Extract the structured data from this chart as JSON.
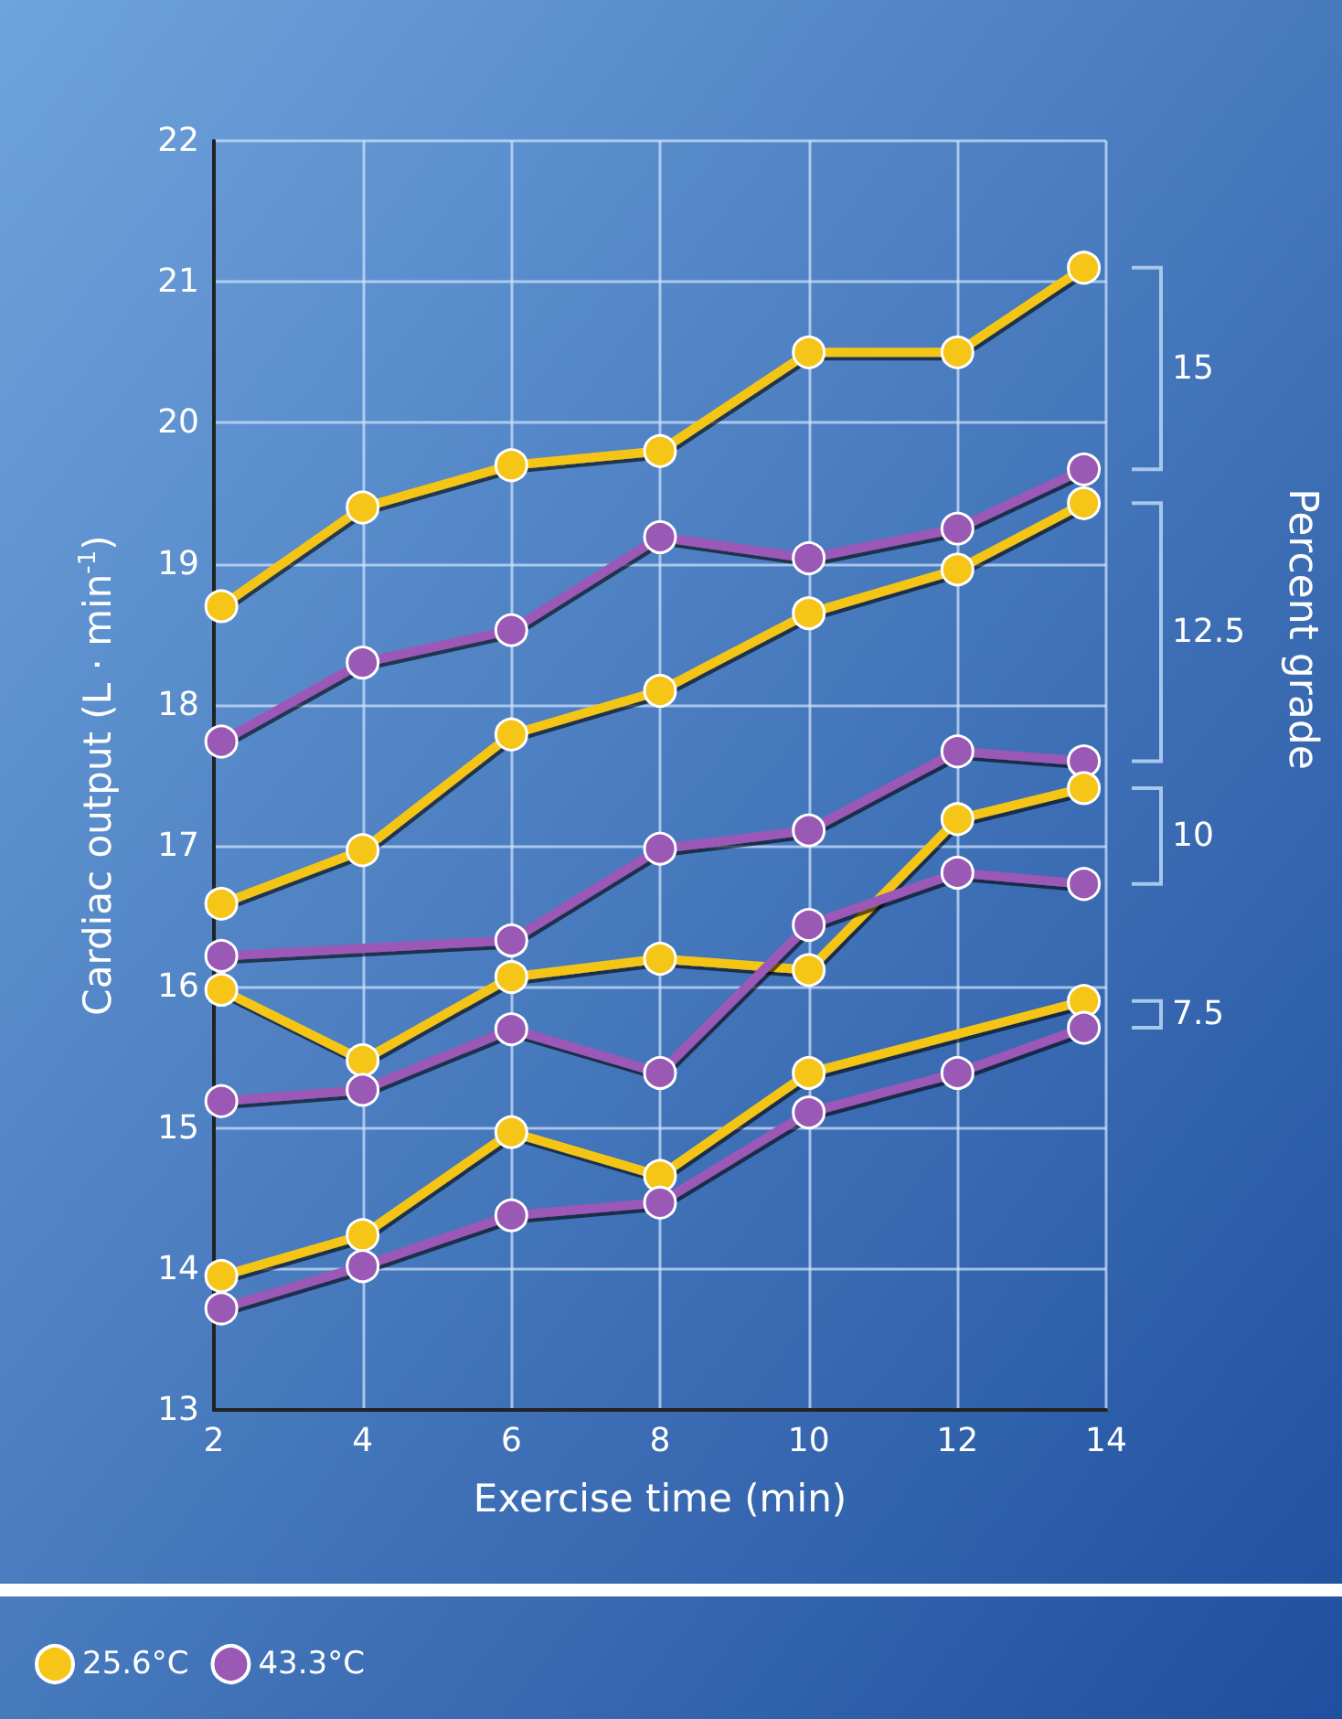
{
  "chart_data": {
    "type": "line",
    "xlabel": "Exercise time (min)",
    "ylabel": "Cardiac output (L · min$^{-1}$)",
    "y2label": "Percent grade",
    "xlim": [
      2,
      14
    ],
    "xticks": [
      2,
      4,
      6,
      8,
      10,
      12,
      14
    ],
    "ylim": [
      13,
      22
    ],
    "yticks": [
      13,
      14,
      15,
      16,
      17,
      18,
      19,
      20,
      21,
      22
    ],
    "grid": true,
    "legend": "bottom left",
    "marker": "circle",
    "line_style": "solid",
    "series": [
      {
        "name": "25.6°C",
        "color": "#f5c518",
        "x": [
          2.1,
          4,
          6,
          8,
          10,
          12,
          13.7
        ],
        "values": [
          18.7,
          19.4,
          19.7,
          19.8,
          20.5,
          20.5,
          21.1
        ]
      },
      {
        "name": "43.3°C",
        "color": "#9b59b6",
        "x": [
          2.1,
          4,
          6,
          8,
          10,
          12,
          13.7
        ],
        "values": [
          17.74,
          18.3,
          18.53,
          19.19,
          19.04,
          19.25,
          19.67
        ]
      },
      {
        "color": "#f5c518",
        "x": [
          2.1,
          4,
          6,
          8,
          10,
          12,
          13.7
        ],
        "values": [
          16.59,
          16.97,
          17.79,
          18.1,
          18.65,
          18.96,
          19.43
        ]
      },
      {
        "color": "#9b59b6",
        "x": [
          2.1,
          6,
          8,
          10,
          12,
          13.7
        ],
        "values": [
          16.22,
          16.33,
          16.98,
          17.11,
          17.67,
          17.6
        ]
      },
      {
        "color": "#f5c518",
        "x": [
          2.1,
          4,
          6,
          8,
          10,
          12,
          13.7
        ],
        "values": [
          15.98,
          15.48,
          16.07,
          16.2,
          16.12,
          17.19,
          17.41
        ]
      },
      {
        "color": "#9b59b6",
        "x": [
          2.1,
          4,
          6,
          8,
          10,
          12,
          13.7
        ],
        "values": [
          15.19,
          15.27,
          15.7,
          15.39,
          16.44,
          16.81,
          16.73
        ]
      },
      {
        "color": "#f5c518",
        "x": [
          2.1,
          4,
          6,
          8,
          10,
          13.7
        ],
        "values": [
          13.95,
          14.24,
          14.97,
          14.66,
          15.39,
          15.9
        ]
      },
      {
        "color": "#9b59b6",
        "x": [
          2.1,
          4,
          6,
          8,
          10,
          12,
          13.7
        ],
        "values": [
          13.72,
          14.02,
          14.38,
          14.47,
          15.11,
          15.39,
          15.71
        ]
      }
    ],
    "annotations": [
      "15",
      "12.5",
      "10",
      "7.5"
    ]
  }
}
